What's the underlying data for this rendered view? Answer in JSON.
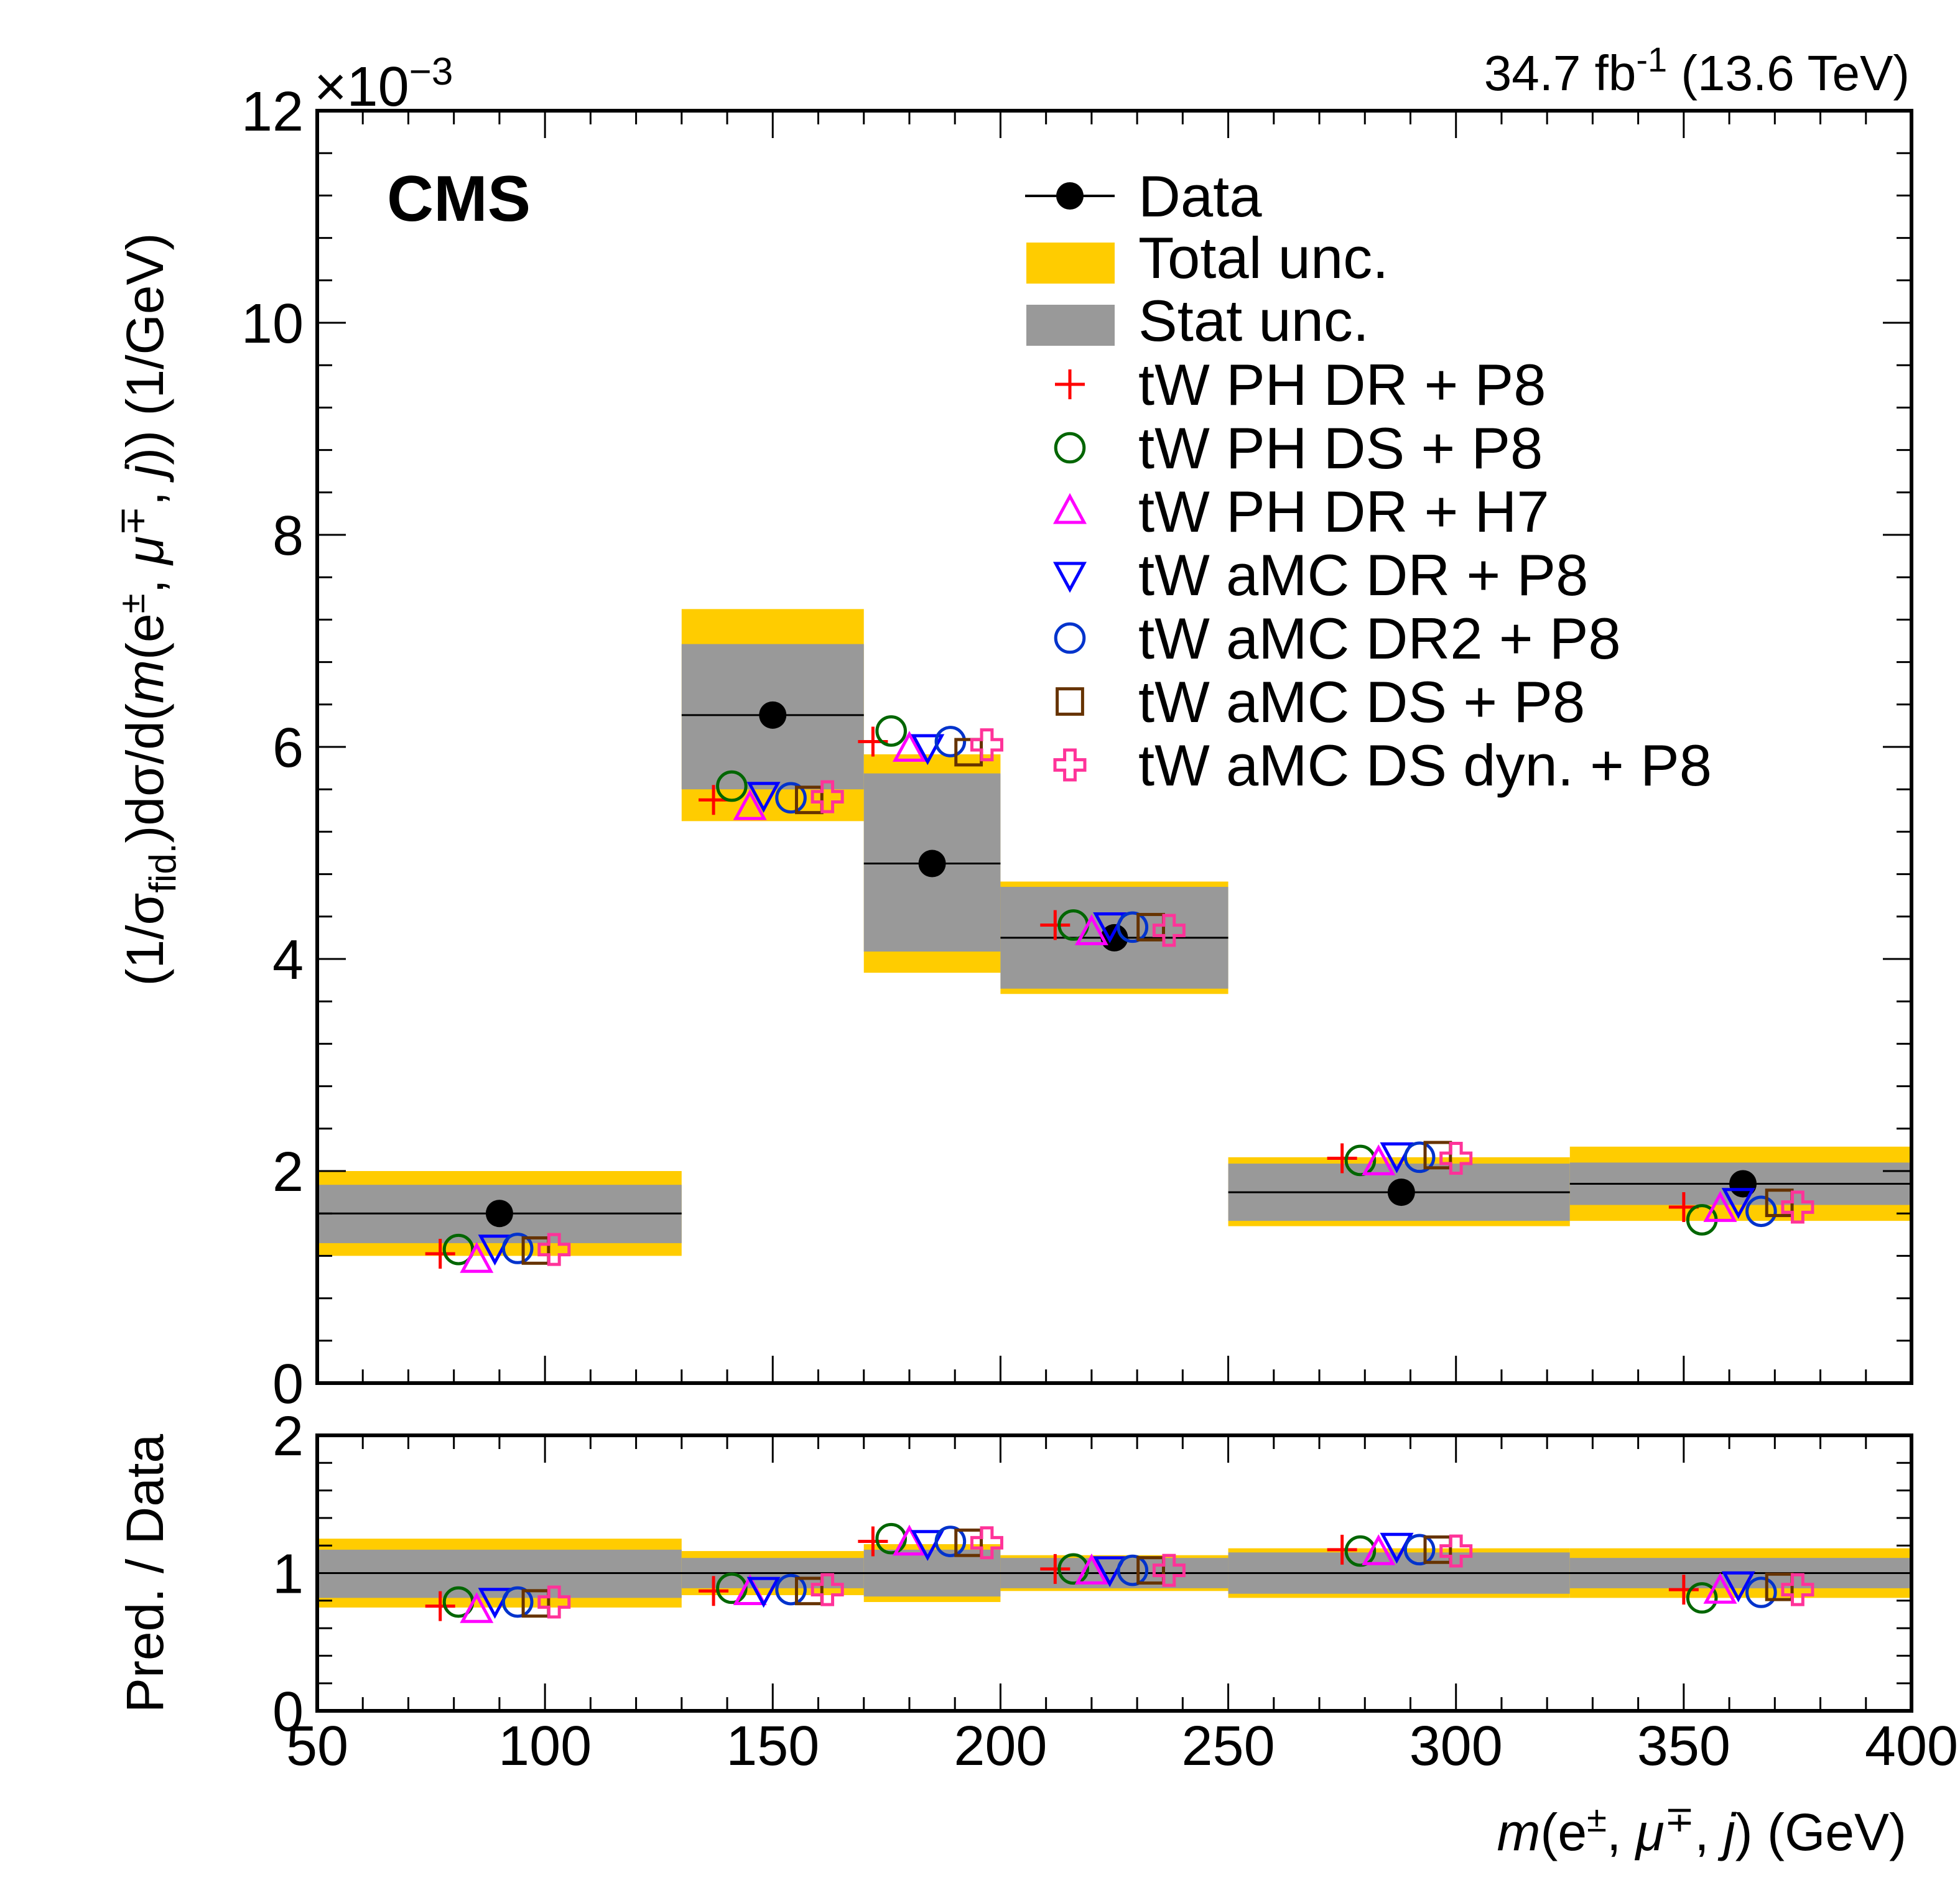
{
  "chart_data": {
    "type": "scatter",
    "experiment_label": "CMS",
    "lumi_label": {
      "base": "34.7 fb",
      "sup": "-1",
      "tail": " (13.6 TeV)"
    },
    "exponent_label": {
      "prefix": "×10",
      "sup": "−3"
    },
    "ylabel_main": {
      "p1": "(1/σ",
      "sub": "fid.",
      "p2": ")dσ/d(",
      "m": "m",
      "p3": "(e",
      "sup1": "±",
      "p4": ", ",
      "mu": "μ",
      "sup2": "∓",
      "p5": ", ",
      "j": "j",
      "p6": ")) (1/GeV)"
    },
    "ylabel_ratio": "Pred. / Data",
    "xlabel": {
      "m": "m",
      "p1": "(e",
      "sup1": "±",
      "p2": ", ",
      "mu": "μ",
      "sup2": "∓",
      "p3": ", ",
      "j": "j",
      "p4": ") (GeV)"
    },
    "xlim": [
      50,
      400
    ],
    "ylim_main": [
      0,
      12
    ],
    "ylim_ratio": [
      0,
      2
    ],
    "x_ticks": [
      50,
      100,
      150,
      200,
      250,
      300,
      350,
      400
    ],
    "y_ticks_main": [
      0,
      2,
      4,
      6,
      8,
      10,
      12
    ],
    "y_ticks_ratio": [
      0,
      1,
      2
    ],
    "bins": [
      {
        "lo": 50,
        "hi": 130
      },
      {
        "lo": 130,
        "hi": 170
      },
      {
        "lo": 170,
        "hi": 200
      },
      {
        "lo": 200,
        "hi": 250
      },
      {
        "lo": 250,
        "hi": 325
      },
      {
        "lo": 325,
        "hi": 400
      }
    ],
    "data": {
      "name": "Data",
      "x": [
        90,
        150,
        185,
        225,
        288,
        363
      ],
      "y": [
        1.6,
        6.3,
        4.9,
        4.2,
        1.8,
        1.88
      ]
    },
    "total_unc": {
      "name": "Total unc.",
      "lo": [
        1.2,
        5.3,
        3.87,
        3.67,
        1.48,
        1.53
      ],
      "hi": [
        2.0,
        7.3,
        5.93,
        4.73,
        2.13,
        2.23
      ]
    },
    "stat_unc": {
      "name": "Stat unc.",
      "lo": [
        1.32,
        5.6,
        4.07,
        3.72,
        1.53,
        1.68
      ],
      "hi": [
        1.87,
        6.97,
        5.75,
        4.68,
        2.07,
        2.08
      ]
    },
    "ratio_total_unc": {
      "lo": [
        0.75,
        0.84,
        0.79,
        0.87,
        0.82,
        0.82
      ],
      "hi": [
        1.25,
        1.16,
        1.21,
        1.13,
        1.18,
        1.18
      ]
    },
    "ratio_stat_unc": {
      "lo": [
        0.82,
        0.89,
        0.83,
        0.89,
        0.85,
        0.89
      ],
      "hi": [
        1.17,
        1.11,
        1.17,
        1.11,
        1.15,
        1.11
      ]
    },
    "legend": {
      "placement": "top-right"
    },
    "series": [
      {
        "name": "tW PH DR + P8",
        "marker": "plus",
        "color": "#ff0000",
        "x": [
          77,
          137,
          172,
          212,
          275,
          350
        ],
        "y": [
          1.22,
          5.5,
          6.05,
          4.32,
          2.12,
          1.66
        ],
        "ratio": [
          0.76,
          0.87,
          1.23,
          1.03,
          1.17,
          0.88
        ]
      },
      {
        "name": "tW PH DS + P8",
        "marker": "circle",
        "color": "#006600",
        "x": [
          81,
          141,
          176,
          216,
          279,
          354
        ],
        "y": [
          1.26,
          5.63,
          6.15,
          4.32,
          2.1,
          1.54
        ],
        "ratio": [
          0.79,
          0.89,
          1.25,
          1.03,
          1.16,
          0.82
        ]
      },
      {
        "name": "tW PH DR + H7",
        "marker": "triangle-up",
        "color": "#ff00ff",
        "x": [
          85,
          145,
          180,
          220,
          283,
          358
        ],
        "y": [
          1.16,
          5.43,
          5.98,
          4.25,
          2.08,
          1.64
        ],
        "ratio": [
          0.73,
          0.86,
          1.22,
          1.01,
          1.15,
          0.87
        ]
      },
      {
        "name": "tW aMC DR + P8",
        "marker": "triangle-down",
        "color": "#0000ff",
        "x": [
          89,
          148,
          184,
          224,
          287,
          362
        ],
        "y": [
          1.28,
          5.55,
          6.0,
          4.32,
          2.15,
          1.72
        ],
        "ratio": [
          0.8,
          0.88,
          1.22,
          1.03,
          1.2,
          0.92
        ]
      },
      {
        "name": "tW aMC DR2 + P8",
        "marker": "circle",
        "color": "#0033cc",
        "x": [
          94,
          154,
          189,
          229,
          292,
          367
        ],
        "y": [
          1.27,
          5.52,
          6.05,
          4.3,
          2.13,
          1.62
        ],
        "ratio": [
          0.79,
          0.88,
          1.23,
          1.02,
          1.17,
          0.86
        ]
      },
      {
        "name": "tW aMC DS + P8",
        "marker": "square",
        "color": "#663300",
        "x": [
          98,
          158,
          193,
          233,
          296,
          371
        ],
        "y": [
          1.25,
          5.5,
          5.95,
          4.3,
          2.15,
          1.7
        ],
        "ratio": [
          0.78,
          0.87,
          1.22,
          1.02,
          1.17,
          0.9
        ]
      },
      {
        "name": "tW aMC DS dyn. + P8",
        "marker": "open-cross",
        "color": "#ff3399",
        "x": [
          102,
          162,
          197,
          237,
          300,
          375
        ],
        "y": [
          1.26,
          5.53,
          6.02,
          4.27,
          2.12,
          1.66
        ],
        "ratio": [
          0.79,
          0.88,
          1.22,
          1.02,
          1.16,
          0.88
        ]
      }
    ]
  },
  "colors": {
    "total_unc": "#ffcc00",
    "stat_unc": "#999999",
    "data": "#000000"
  }
}
